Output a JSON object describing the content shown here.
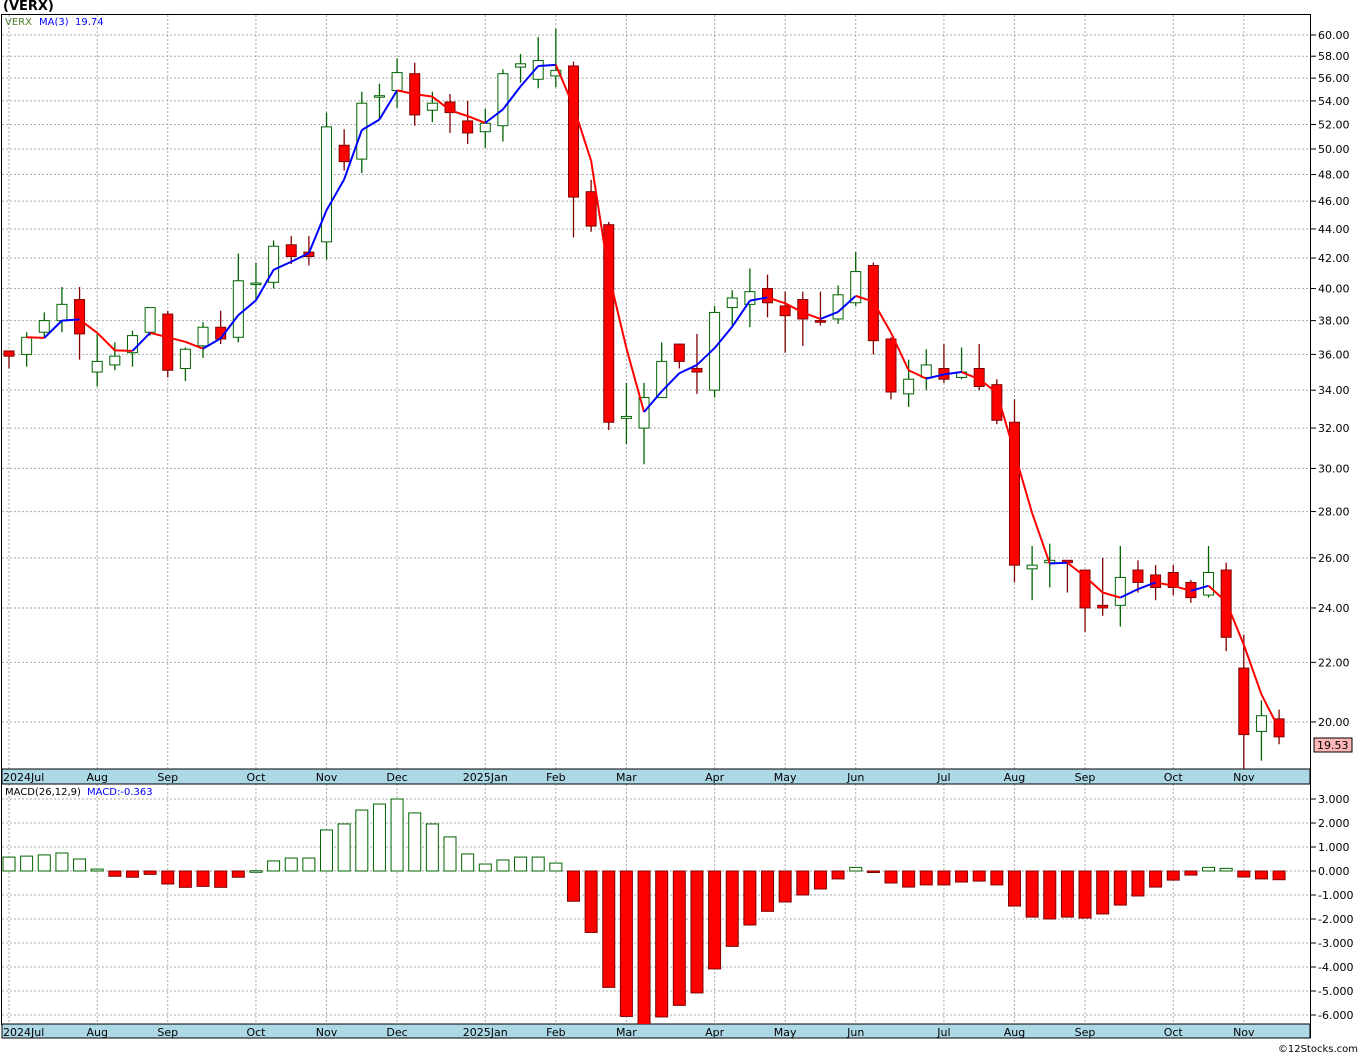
{
  "title": "(VERX)",
  "legend": {
    "symbol": "VERX",
    "ma_label": "MA(3)",
    "ma_value": "19.74"
  },
  "macd_legend": {
    "label": "MACD(26,12,9)",
    "value": "MACD:-0.363"
  },
  "last_price_label": "19.53",
  "copyright": "©12Stocks.com",
  "colors": {
    "up": "#006400",
    "down": "#ff0000",
    "down_edge": "#800000",
    "ma_up": "#0000ff",
    "ma_down": "#ff0000",
    "axis_band": "#add8e6"
  },
  "chart_data": [
    {
      "type": "candlestick",
      "title": "(VERX)",
      "period": "weekly",
      "ylim": [
        18,
        61
      ],
      "yscale": "log",
      "yticks": [
        "20.00",
        "22.00",
        "24.00",
        "26.00",
        "28.00",
        "30.00",
        "32.00",
        "34.00",
        "36.00",
        "38.00",
        "40.00",
        "42.00",
        "44.00",
        "46.00",
        "48.00",
        "50.00",
        "52.00",
        "54.00",
        "56.00",
        "58.00",
        "60.00"
      ],
      "months": [
        {
          "label": "2024Jul",
          "week": 0
        },
        {
          "label": "Aug",
          "week": 5
        },
        {
          "label": "Sep",
          "week": 9
        },
        {
          "label": "Oct",
          "week": 14
        },
        {
          "label": "Nov",
          "week": 18
        },
        {
          "label": "Dec",
          "week": 22
        },
        {
          "label": "2025Jan",
          "week": 27
        },
        {
          "label": "Feb",
          "week": 31
        },
        {
          "label": "Mar",
          "week": 35
        },
        {
          "label": "Apr",
          "week": 40
        },
        {
          "label": "May",
          "week": 44
        },
        {
          "label": "Jun",
          "week": 48
        },
        {
          "label": "Jul",
          "week": 53
        },
        {
          "label": "Aug",
          "week": 57
        },
        {
          "label": "Sep",
          "week": 61
        },
        {
          "label": "Oct",
          "week": 66
        },
        {
          "label": "Nov",
          "week": 70
        }
      ],
      "ohlc_fields": [
        "open",
        "high",
        "low",
        "close"
      ],
      "ohlc": [
        [
          36.2,
          36.2,
          35.2,
          35.9
        ],
        [
          36.0,
          37.3,
          35.3,
          37.0
        ],
        [
          37.3,
          38.5,
          37.0,
          38.0
        ],
        [
          38.0,
          40.1,
          37.3,
          39.0
        ],
        [
          39.3,
          40.1,
          35.7,
          37.2
        ],
        [
          35.0,
          37.2,
          34.2,
          35.6
        ],
        [
          35.4,
          36.7,
          35.1,
          35.9
        ],
        [
          36.1,
          37.4,
          35.3,
          37.1
        ],
        [
          37.3,
          38.8,
          37.1,
          38.8
        ],
        [
          38.4,
          38.6,
          34.7,
          35.1
        ],
        [
          35.2,
          36.4,
          34.5,
          36.3
        ],
        [
          36.5,
          37.9,
          35.8,
          37.6
        ],
        [
          37.6,
          38.6,
          36.6,
          36.9
        ],
        [
          37.0,
          42.3,
          36.7,
          40.5
        ],
        [
          40.3,
          41.7,
          39.2,
          40.35
        ],
        [
          40.4,
          43.2,
          40.0,
          42.8
        ],
        [
          42.9,
          43.5,
          41.6,
          42.1
        ],
        [
          42.4,
          43.5,
          41.5,
          42.1
        ],
        [
          43.1,
          53.0,
          41.9,
          51.8
        ],
        [
          50.3,
          51.6,
          48.3,
          49.0
        ],
        [
          49.2,
          54.8,
          48.1,
          53.8
        ],
        [
          54.4,
          55.5,
          52.5,
          54.45
        ],
        [
          54.9,
          57.8,
          53.4,
          56.5
        ],
        [
          56.4,
          57.4,
          51.9,
          52.8
        ],
        [
          53.2,
          54.8,
          52.2,
          53.8
        ],
        [
          53.9,
          54.6,
          51.3,
          53.0
        ],
        [
          52.3,
          54.0,
          50.4,
          51.3
        ],
        [
          51.4,
          53.3,
          50.1,
          52.1
        ],
        [
          51.9,
          56.8,
          50.6,
          56.4
        ],
        [
          57.0,
          58.2,
          55.6,
          57.3
        ],
        [
          55.9,
          59.8,
          55.1,
          57.6
        ],
        [
          56.2,
          60.6,
          55.2,
          56.7
        ],
        [
          57.1,
          57.5,
          43.4,
          46.3
        ],
        [
          46.7,
          47.6,
          43.8,
          44.2
        ],
        [
          44.3,
          44.5,
          31.9,
          32.3
        ],
        [
          32.5,
          34.4,
          31.2,
          32.6
        ],
        [
          32.0,
          34.4,
          30.2,
          33.6
        ],
        [
          33.6,
          36.7,
          33.6,
          35.6
        ],
        [
          36.6,
          36.6,
          35.2,
          35.6
        ],
        [
          35.2,
          37.2,
          33.8,
          35.0
        ],
        [
          34.0,
          38.9,
          33.6,
          38.5
        ],
        [
          38.8,
          39.9,
          37.7,
          39.4
        ],
        [
          39.0,
          41.3,
          37.6,
          39.8
        ],
        [
          40.0,
          40.9,
          38.2,
          39.1
        ],
        [
          38.9,
          39.8,
          36.1,
          38.3
        ],
        [
          39.3,
          39.8,
          36.5,
          38.1
        ],
        [
          38.0,
          39.8,
          37.7,
          37.9
        ],
        [
          38.1,
          40.2,
          37.8,
          39.6
        ],
        [
          39.1,
          42.4,
          38.9,
          41.1
        ],
        [
          41.5,
          41.7,
          36.0,
          36.8
        ],
        [
          36.9,
          37.0,
          33.5,
          33.9
        ],
        [
          33.8,
          35.7,
          33.1,
          34.6
        ],
        [
          34.7,
          36.3,
          34.0,
          35.4
        ],
        [
          35.2,
          36.6,
          34.4,
          34.6
        ],
        [
          34.7,
          36.4,
          34.6,
          35.0
        ],
        [
          35.2,
          36.6,
          34.0,
          34.2
        ],
        [
          34.3,
          34.6,
          32.2,
          32.4
        ],
        [
          32.3,
          33.5,
          25.0,
          25.7
        ],
        [
          25.55,
          26.5,
          24.3,
          25.7
        ],
        [
          25.8,
          26.6,
          24.8,
          25.9
        ],
        [
          25.9,
          25.9,
          24.6,
          25.8
        ],
        [
          25.5,
          25.5,
          23.1,
          24.0
        ],
        [
          24.1,
          26.0,
          23.7,
          24.0
        ],
        [
          24.1,
          26.5,
          23.3,
          25.2
        ],
        [
          25.5,
          25.9,
          24.6,
          25.0
        ],
        [
          25.3,
          25.7,
          24.3,
          24.8
        ],
        [
          25.4,
          25.7,
          24.5,
          24.8
        ],
        [
          25.0,
          25.1,
          24.2,
          24.4
        ],
        [
          24.5,
          26.5,
          24.4,
          25.4
        ],
        [
          25.5,
          25.8,
          22.4,
          22.9
        ],
        [
          21.8,
          23.0,
          18.4,
          19.6
        ],
        [
          19.7,
          20.7,
          18.8,
          20.2
        ],
        [
          20.1,
          20.4,
          19.3,
          19.53
        ]
      ],
      "overlay": {
        "name": "MA(3)",
        "type": "sma",
        "period": 3
      }
    },
    {
      "type": "bar",
      "title": "MACD(26,12,9)",
      "ylim": [
        -6.4,
        3.2
      ],
      "yticks": [
        "3.000",
        "2.000",
        "1.000",
        "0.000",
        "-1.000",
        "-2.000",
        "-3.000",
        "-4.000",
        "-5.000",
        "-6.000"
      ],
      "values": [
        0.58,
        0.62,
        0.67,
        0.75,
        0.5,
        0.08,
        -0.22,
        -0.26,
        -0.14,
        -0.54,
        -0.68,
        -0.64,
        -0.68,
        -0.26,
        0.01,
        0.42,
        0.54,
        0.54,
        1.71,
        1.96,
        2.54,
        2.79,
        3.0,
        2.42,
        1.96,
        1.42,
        0.71,
        0.29,
        0.46,
        0.58,
        0.58,
        0.33,
        -1.26,
        -2.56,
        -4.85,
        -6.06,
        -6.4,
        -6.08,
        -5.6,
        -5.08,
        -4.08,
        -3.14,
        -2.25,
        -1.68,
        -1.29,
        -1.0,
        -0.75,
        -0.33,
        0.15,
        -0.04,
        -0.5,
        -0.67,
        -0.58,
        -0.58,
        -0.46,
        -0.42,
        -0.58,
        -1.46,
        -1.92,
        -2.0,
        -1.92,
        -1.96,
        -1.79,
        -1.42,
        -1.04,
        -0.67,
        -0.38,
        -0.17,
        0.15,
        0.11,
        -0.25,
        -0.33,
        -0.363
      ]
    }
  ]
}
